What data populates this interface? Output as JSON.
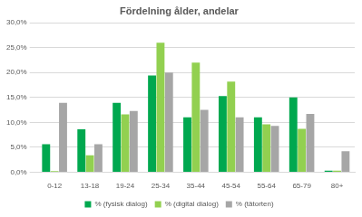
{
  "chart_data": {
    "type": "bar",
    "title": "Fördelning ålder, andelar",
    "categories": [
      "0-12",
      "13-18",
      "19-24",
      "25-34",
      "35-44",
      "45-54",
      "55-64",
      "65-79",
      "80+"
    ],
    "series": [
      {
        "name": "% (fysisk dialog)",
        "color": "#00a84f",
        "values": [
          5.6,
          8.6,
          13.9,
          19.4,
          11.0,
          15.3,
          11.0,
          15.0,
          0.3
        ]
      },
      {
        "name": "% (digital dialog)",
        "color": "#92d050",
        "values": [
          0.2,
          3.4,
          11.6,
          26.0,
          22.0,
          18.2,
          9.6,
          8.7,
          0.3
        ]
      },
      {
        "name": "% (tätorten)",
        "color": "#a6a6a6",
        "values": [
          13.9,
          5.6,
          12.3,
          20.0,
          12.5,
          11.0,
          9.3,
          11.7,
          4.2
        ]
      }
    ],
    "ylim": [
      0,
      30
    ],
    "yticks": [
      {
        "value": 0,
        "label": "0,0%"
      },
      {
        "value": 5,
        "label": "5,0%"
      },
      {
        "value": 10,
        "label": "10,0%"
      },
      {
        "value": 15,
        "label": "15,0%"
      },
      {
        "value": 20,
        "label": "20,0%"
      },
      {
        "value": 25,
        "label": "25,0%"
      },
      {
        "value": 30,
        "label": "30,0%"
      }
    ],
    "grid": true,
    "legend": "bottom"
  }
}
